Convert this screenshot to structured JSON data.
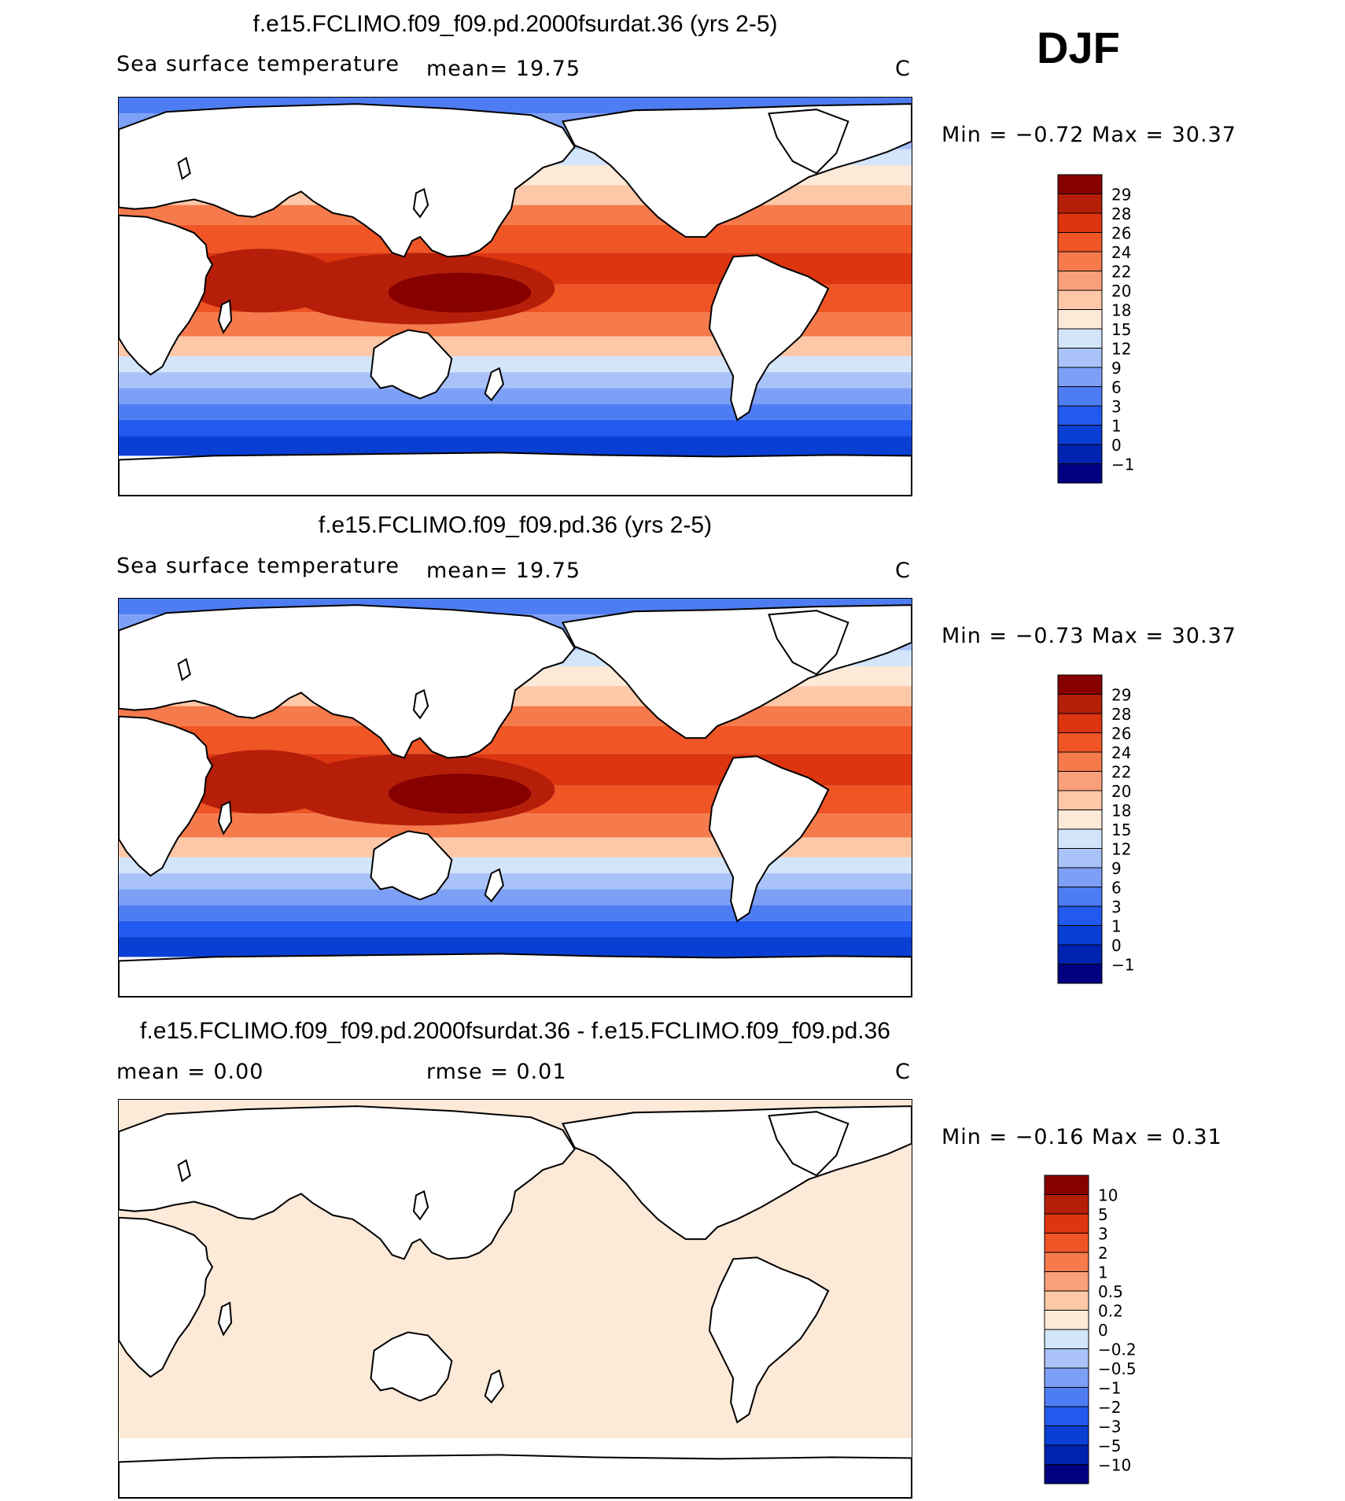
{
  "season": "DJF",
  "colors": {
    "sst": [
      "#000080",
      "#0022b0",
      "#0a3fd4",
      "#2259ee",
      "#4e7cf2",
      "#7da0f6",
      "#a9c3f9",
      "#d3e5fb",
      "#fde9d8",
      "#fcc8a8",
      "#f9a07a",
      "#f57a4c",
      "#ef5525",
      "#dc3510",
      "#b51f0a",
      "#860000"
    ],
    "diff": [
      "#000080",
      "#0022b0",
      "#0a3fd4",
      "#2259ee",
      "#4e7cf2",
      "#7da0f6",
      "#a9c3f9",
      "#d3e5fb",
      "#fde9d8",
      "#fcc8a8",
      "#f9a07a",
      "#f57a4c",
      "#ef5525",
      "#dc3510",
      "#b51f0a",
      "#860000"
    ],
    "land": "#ffffff",
    "coast": "#000000"
  },
  "panels": [
    {
      "title": "f.e15.FCLIMO.f09_f09.pd.2000fsurdat.36 (yrs 2-5)",
      "left_label": "Sea surface temperature",
      "mid_label": "mean=   19.75",
      "units": "C",
      "stats": "Min =   −0.72  Max =   30.37",
      "colorbar": {
        "labels": [
          "29",
          "28",
          "26",
          "24",
          "22",
          "20",
          "18",
          "15",
          "12",
          "9",
          "6",
          "3",
          "1",
          "0",
          "−1"
        ]
      }
    },
    {
      "title": "f.e15.FCLIMO.f09_f09.pd.36 (yrs 2-5)",
      "left_label": "Sea surface temperature",
      "mid_label": "mean=   19.75",
      "units": "C",
      "stats": "Min =   −0.73  Max =   30.37",
      "colorbar": {
        "labels": [
          "29",
          "28",
          "26",
          "24",
          "22",
          "20",
          "18",
          "15",
          "12",
          "9",
          "6",
          "3",
          "1",
          "0",
          "−1"
        ]
      }
    },
    {
      "title": "f.e15.FCLIMO.f09_f09.pd.2000fsurdat.36 - f.e15.FCLIMO.f09_f09.pd.36",
      "left_label": "mean =     0.00",
      "mid_label": "rmse =     0.01",
      "units": "C",
      "stats": "Min =   −0.16  Max =    0.31",
      "colorbar": {
        "labels": [
          "10",
          "5",
          "3",
          "2",
          "1",
          "0.5",
          "0.2",
          "0",
          "−0.2",
          "−0.5",
          "−1",
          "−2",
          "−3",
          "−5",
          "−10"
        ]
      }
    }
  ]
}
